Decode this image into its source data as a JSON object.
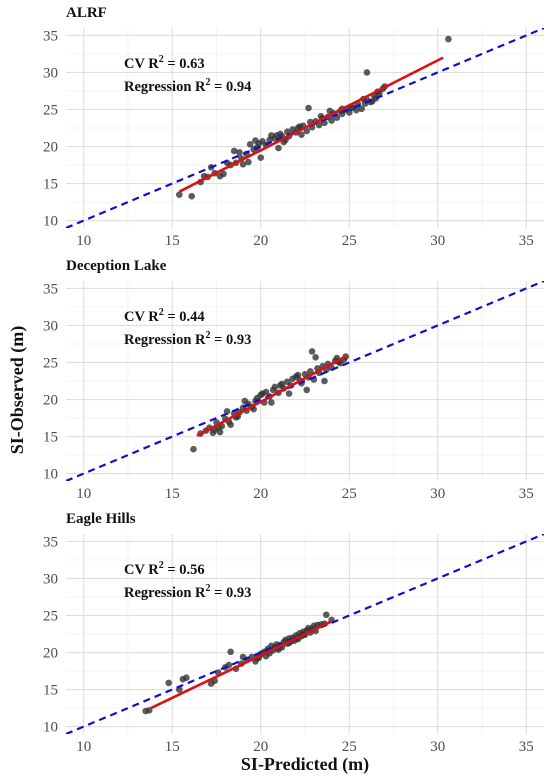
{
  "x_axis_title": "SI-Predicted (m)",
  "y_axis_title": "SI-Observed (m)",
  "chart_data": [
    {
      "type": "scatter",
      "title": "ALRF",
      "annotations": {
        "cv": "CV R",
        "reg": "Regression R",
        "sup": "2",
        "cv_value": " = 0.63",
        "reg_value": " = 0.94"
      },
      "xlim": [
        9,
        36
      ],
      "ylim": [
        9,
        36
      ],
      "x_ticks": [
        10,
        15,
        20,
        25,
        30,
        35
      ],
      "y_ticks": [
        10,
        15,
        20,
        25,
        30,
        35
      ],
      "one_to_one_line": {
        "style": "dashed",
        "color": "#1010cc",
        "x": [
          9,
          36
        ],
        "y": [
          9,
          36
        ]
      },
      "regression_line": {
        "color": "#dd1111",
        "x": [
          15.4,
          30.3
        ],
        "y": [
          13.9,
          32.0
        ]
      },
      "points": {
        "color": "#333333",
        "x": [
          15.4,
          16.1,
          16.6,
          16.8,
          17.2,
          17.4,
          17.7,
          17.9,
          18.3,
          18.6,
          18.8,
          18.9,
          19.0,
          19.2,
          19.4,
          19.6,
          19.8,
          19.9,
          20.1,
          20.3,
          20.5,
          20.6,
          20.8,
          21.0,
          21.1,
          21.3,
          21.5,
          21.6,
          21.8,
          22.0,
          22.1,
          22.3,
          22.4,
          22.6,
          22.8,
          22.9,
          23.1,
          23.3,
          23.5,
          23.6,
          23.8,
          24.0,
          24.1,
          24.3,
          24.5,
          24.6,
          24.8,
          25.0,
          25.2,
          25.4,
          25.5,
          25.7,
          25.9,
          26.0,
          26.2,
          26.4,
          26.5,
          26.7,
          26.9,
          27.0,
          20.0,
          21.4,
          22.7,
          23.9,
          25.1,
          26.3,
          18.5,
          19.3,
          20.9,
          22.2,
          23.4,
          24.6,
          25.8,
          26.6,
          30.6,
          26.0,
          17.0,
          18.1,
          19.7,
          21.2
        ],
        "y": [
          13.5,
          13.3,
          15.2,
          16.0,
          17.2,
          16.4,
          16.0,
          16.3,
          17.5,
          17.8,
          19.2,
          18.4,
          17.6,
          19.0,
          20.3,
          19.6,
          19.9,
          20.4,
          20.7,
          20.2,
          20.9,
          21.5,
          21.1,
          19.8,
          21.7,
          20.6,
          22.0,
          21.4,
          22.3,
          21.9,
          22.5,
          21.6,
          22.8,
          22.1,
          23.3,
          22.6,
          23.4,
          22.9,
          23.8,
          23.2,
          24.0,
          23.5,
          24.5,
          23.9,
          24.8,
          24.4,
          25.0,
          24.6,
          25.3,
          24.9,
          25.7,
          25.1,
          25.8,
          26.3,
          26.0,
          26.9,
          26.5,
          27.2,
          27.8,
          28.1,
          18.5,
          20.9,
          25.2,
          24.8,
          25.2,
          26.1,
          19.4,
          17.9,
          21.5,
          22.7,
          24.1,
          25.1,
          26.4,
          27.4,
          34.5,
          30.0,
          15.9,
          17.8,
          20.8,
          21.4
        ]
      }
    },
    {
      "type": "scatter",
      "title": "Deception Lake",
      "annotations": {
        "cv": "CV R",
        "reg": "Regression R",
        "sup": "2",
        "cv_value": " = 0.44",
        "reg_value": " = 0.93"
      },
      "xlim": [
        9,
        36
      ],
      "ylim": [
        9,
        36
      ],
      "x_ticks": [
        10,
        15,
        20,
        25,
        30,
        35
      ],
      "y_ticks": [
        10,
        15,
        20,
        25,
        30,
        35
      ],
      "one_to_one_line": {
        "style": "dashed",
        "color": "#1010cc",
        "x": [
          9,
          36
        ],
        "y": [
          9,
          36
        ]
      },
      "regression_line": {
        "color": "#dd1111",
        "x": [
          16.4,
          24.8
        ],
        "y": [
          15.1,
          25.8
        ]
      },
      "points": {
        "color": "#333333",
        "x": [
          16.2,
          16.6,
          16.9,
          17.1,
          17.3,
          17.5,
          17.7,
          17.8,
          18.0,
          18.2,
          18.3,
          18.5,
          18.7,
          18.8,
          19.0,
          19.2,
          19.3,
          19.5,
          19.7,
          19.8,
          20.0,
          20.2,
          20.3,
          20.5,
          20.7,
          20.8,
          21.0,
          21.2,
          21.3,
          21.5,
          21.7,
          21.8,
          22.0,
          22.2,
          22.3,
          22.5,
          22.7,
          22.8,
          23.0,
          23.2,
          23.3,
          23.5,
          23.7,
          23.8,
          24.0,
          24.2,
          24.3,
          24.5,
          24.7,
          24.8,
          17.4,
          18.6,
          19.6,
          20.6,
          21.6,
          22.6,
          23.6,
          22.9,
          23.1,
          18.1,
          19.1,
          20.1,
          21.1,
          22.1,
          17.6,
          24.4
        ],
        "y": [
          13.3,
          15.4,
          15.8,
          16.2,
          15.5,
          16.9,
          15.6,
          16.4,
          17.4,
          17.0,
          16.6,
          18.1,
          17.7,
          18.3,
          18.9,
          18.5,
          19.4,
          19.0,
          19.8,
          20.2,
          20.6,
          19.6,
          21.0,
          20.4,
          21.3,
          21.7,
          20.9,
          22.1,
          21.5,
          22.4,
          21.9,
          22.8,
          23.1,
          22.6,
          22.2,
          23.4,
          23.0,
          23.8,
          22.7,
          24.2,
          23.6,
          24.5,
          24.0,
          24.8,
          24.3,
          25.2,
          25.6,
          24.9,
          25.4,
          25.8,
          15.9,
          17.6,
          18.7,
          19.6,
          20.8,
          21.3,
          22.5,
          26.5,
          25.7,
          18.4,
          19.8,
          20.8,
          21.9,
          23.3,
          16.2,
          25.1
        ]
      }
    },
    {
      "type": "scatter",
      "title": "Eagle Hills",
      "annotations": {
        "cv": "CV R",
        "reg": "Regression R",
        "sup": "2",
        "cv_value": " = 0.56",
        "reg_value": " = 0.93"
      },
      "xlim": [
        9,
        36
      ],
      "ylim": [
        9,
        36
      ],
      "x_ticks": [
        10,
        15,
        20,
        25,
        30,
        35
      ],
      "y_ticks": [
        10,
        15,
        20,
        25,
        30,
        35
      ],
      "one_to_one_line": {
        "style": "dashed",
        "color": "#1010cc",
        "x": [
          9,
          36
        ],
        "y": [
          9,
          36
        ]
      },
      "regression_line": {
        "color": "#dd1111",
        "x": [
          13.8,
          24.0
        ],
        "y": [
          12.5,
          24.2
        ]
      },
      "points": {
        "color": "#333333",
        "x": [
          13.5,
          13.7,
          14.8,
          15.4,
          15.6,
          15.8,
          17.2,
          17.4,
          17.6,
          18.0,
          18.3,
          18.6,
          18.9,
          19.2,
          19.5,
          19.7,
          19.9,
          20.0,
          20.2,
          20.3,
          20.4,
          20.5,
          20.6,
          20.7,
          20.8,
          20.9,
          21.0,
          21.1,
          21.2,
          21.3,
          21.4,
          21.5,
          21.6,
          21.7,
          21.8,
          21.9,
          22.0,
          22.1,
          22.2,
          22.3,
          22.4,
          22.5,
          22.6,
          22.7,
          22.8,
          22.9,
          23.0,
          23.1,
          23.2,
          23.4,
          23.6,
          23.7,
          24.0,
          19.8,
          20.1,
          20.4,
          21.0,
          21.6,
          22.0,
          22.4,
          18.2,
          19.0
        ],
        "y": [
          12.1,
          12.2,
          15.9,
          15.0,
          16.4,
          16.6,
          15.8,
          16.2,
          17.3,
          18.0,
          20.1,
          17.8,
          18.5,
          19.0,
          19.4,
          18.8,
          19.3,
          19.8,
          20.1,
          19.5,
          20.5,
          19.9,
          20.9,
          20.3,
          20.7,
          21.1,
          20.4,
          21.0,
          20.7,
          21.4,
          21.7,
          21.2,
          21.9,
          21.5,
          22.0,
          21.6,
          22.3,
          21.8,
          22.6,
          22.2,
          22.8,
          22.4,
          23.0,
          23.3,
          22.7,
          23.2,
          23.6,
          22.9,
          23.7,
          23.8,
          23.9,
          25.1,
          24.4,
          19.2,
          19.9,
          20.2,
          20.6,
          21.3,
          21.9,
          22.4,
          18.3,
          19.4
        ]
      }
    }
  ]
}
